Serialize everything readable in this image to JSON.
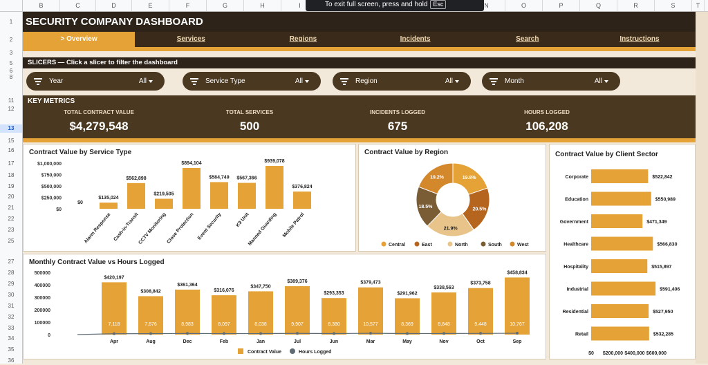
{
  "spreadsheet": {
    "columns": [
      "B",
      "C",
      "D",
      "E",
      "F",
      "G",
      "H",
      "I",
      "J",
      "K",
      "L",
      "M",
      "N",
      "O",
      "P",
      "Q",
      "R",
      "S",
      "T"
    ],
    "rows": [
      "1",
      "2",
      "3",
      "5",
      "6",
      "8",
      "11",
      "12",
      "13",
      "15",
      "16",
      "17",
      "18",
      "19",
      "20",
      "21",
      "22",
      "23",
      "25",
      "27",
      "28",
      "29",
      "30",
      "31",
      "32",
      "33",
      "34",
      "35",
      "36"
    ],
    "selected_row": "13"
  },
  "toast": {
    "text": "To exit full screen, press and hold",
    "key": "Esc"
  },
  "dashboard": {
    "title": "SECURITY COMPANY DASHBOARD",
    "nav": [
      {
        "label": "> Overview",
        "active": true
      },
      {
        "label": "Services"
      },
      {
        "label": "Regions"
      },
      {
        "label": "Incidents"
      },
      {
        "label": "Search"
      },
      {
        "label": "Instructions"
      }
    ],
    "slicers_header": "SLICERS — Click a slicer to filter the dashboard",
    "slicers": [
      {
        "label": "Year",
        "value": "All"
      },
      {
        "label": "Service Type",
        "value": "All"
      },
      {
        "label": "Region",
        "value": "All"
      },
      {
        "label": "Month",
        "value": "All"
      }
    ],
    "metrics_header": "KEY METRICS",
    "metrics": [
      {
        "label": "TOTAL CONTRACT VALUE",
        "value": "$4,279,548"
      },
      {
        "label": "TOTAL SERVICES",
        "value": "500"
      },
      {
        "label": "INCIDENTS LOGGED",
        "value": "675"
      },
      {
        "label": "HOURS LOGGED",
        "value": "106,208"
      }
    ]
  },
  "colors": {
    "bar": "#e5a236",
    "dark": "#4a3820",
    "line": "#5f6b73"
  },
  "chart_data": [
    {
      "type": "bar",
      "title": "Contract Value by Service Type",
      "categories": [
        "Alarm Response",
        "Cash-in-Transit",
        "CCTV Monitoring",
        "Close Protection",
        "Event Security",
        "K9 Unit",
        "Manned Guarding",
        "Mobile Patrol"
      ],
      "values": [
        135024,
        562898,
        219505,
        894104,
        584749,
        567366,
        939078,
        376824
      ],
      "labels": [
        "$135,024",
        "$562,898",
        "$219,505",
        "$894,104",
        "$584,749",
        "$567,366",
        "$939,078",
        "$376,824"
      ],
      "yticks": [
        "$0",
        "$250,000",
        "$500,000",
        "$750,000",
        "$1,000,000"
      ],
      "zero_label": "$0",
      "ylim": [
        0,
        1000000
      ]
    },
    {
      "type": "pie",
      "title": "Contract Value by Region",
      "categories": [
        "Central",
        "East",
        "North",
        "South",
        "West"
      ],
      "values": [
        19.8,
        20.5,
        21.9,
        18.5,
        19.2
      ],
      "labels": [
        "19.8%",
        "20.5%",
        "21.9%",
        "18.5%",
        "19.2%"
      ],
      "colors": [
        "#e5a236",
        "#b5651d",
        "#e8c48a",
        "#7a5c35",
        "#d4882c"
      ]
    },
    {
      "type": "bar",
      "title": "Contract Value by Client Sector",
      "orientation": "horizontal",
      "categories": [
        "Corporate",
        "Education",
        "Government",
        "Healthcare",
        "Hospitality",
        "Industrial",
        "Residential",
        "Retail"
      ],
      "values": [
        522842,
        550989,
        471349,
        566830,
        515897,
        591406,
        527950,
        532285
      ],
      "labels": [
        "$522,842",
        "$550,989",
        "$471,349",
        "$566,830",
        "$515,897",
        "$591,406",
        "$527,950",
        "$532,285"
      ],
      "xticks": [
        "$0",
        "$200,000",
        "$400,000",
        "$600,000"
      ],
      "xlim": [
        0,
        600000
      ]
    },
    {
      "type": "bar",
      "title": "Monthly Contract Value vs Hours Logged",
      "categories": [
        "Apr",
        "Aug",
        "Dec",
        "Feb",
        "Jan",
        "Jul",
        "Jun",
        "Mar",
        "May",
        "Nov",
        "Oct",
        "Sep"
      ],
      "series": [
        {
          "name": "Contract Value",
          "values": [
            420197,
            308842,
            361364,
            316076,
            347750,
            389376,
            293353,
            379473,
            291962,
            338563,
            373758,
            458834
          ],
          "labels": [
            "$420,197",
            "$308,842",
            "$361,364",
            "$316,076",
            "$347,750",
            "$389,376",
            "$293,353",
            "$379,473",
            "$291,962",
            "$338,563",
            "$373,758",
            "$458,834"
          ]
        },
        {
          "name": "Hours Logged",
          "values": [
            7118,
            7676,
            8983,
            8097,
            8038,
            9907,
            8380,
            10577,
            8369,
            8848,
            9448,
            10767
          ],
          "labels": [
            "7,118",
            "7,676",
            "8,983",
            "8,097",
            "8,038",
            "9,907",
            "8,380",
            "10,577",
            "8,369",
            "8,848",
            "9,448",
            "10,767"
          ]
        }
      ],
      "yticks": [
        "0",
        "100000",
        "200000",
        "300000",
        "400000",
        "500000"
      ],
      "ylim": [
        0,
        500000
      ]
    }
  ]
}
